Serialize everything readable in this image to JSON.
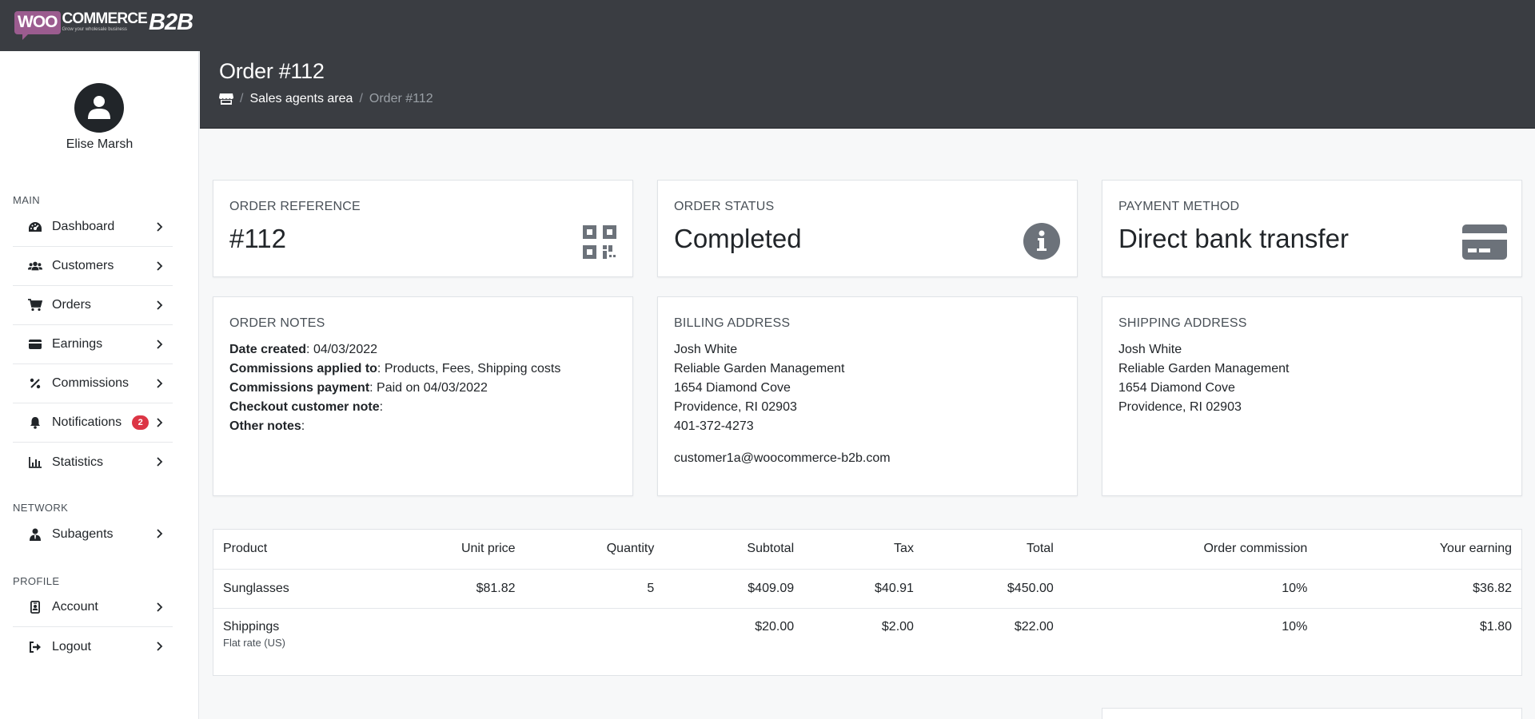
{
  "brand": {
    "woo": "WOO",
    "commerce": "COMMERCE",
    "tagline": "Grow your wholesale business",
    "b2b": "B2B"
  },
  "user": {
    "name": "Elise Marsh"
  },
  "sidebar": {
    "sections": [
      {
        "title": "MAIN",
        "items": [
          {
            "label": "Dashboard",
            "icon": "speedometer-icon"
          },
          {
            "label": "Customers",
            "icon": "users-icon"
          },
          {
            "label": "Orders",
            "icon": "cart-icon"
          },
          {
            "label": "Earnings",
            "icon": "wallet-icon"
          },
          {
            "label": "Commissions",
            "icon": "percent-icon"
          },
          {
            "label": "Notifications",
            "icon": "bell-icon",
            "badge": "2"
          },
          {
            "label": "Statistics",
            "icon": "chart-icon"
          }
        ]
      },
      {
        "title": "NETWORK",
        "items": [
          {
            "label": "Subagents",
            "icon": "user-tie-icon"
          }
        ]
      },
      {
        "title": "PROFILE",
        "items": [
          {
            "label": "Account",
            "icon": "id-badge-icon"
          },
          {
            "label": "Logout",
            "icon": "logout-icon"
          }
        ]
      }
    ]
  },
  "header": {
    "title": "Order #112",
    "breadcrumb": {
      "link": "Sales agents area",
      "current": "Order #112"
    }
  },
  "summary": {
    "reference": {
      "label": "ORDER REFERENCE",
      "value": "#112",
      "icon": "qrcode-icon"
    },
    "status": {
      "label": "ORDER STATUS",
      "value": "Completed",
      "icon": "info-icon"
    },
    "payment": {
      "label": "PAYMENT METHOD",
      "value": "Direct bank transfer",
      "icon": "credit-card-icon"
    }
  },
  "notes": {
    "label": "ORDER NOTES",
    "rows": [
      {
        "key": "Date created",
        "value": ": 04/03/2022"
      },
      {
        "key": "Commissions applied to",
        "value": ": Products, Fees, Shipping costs"
      },
      {
        "key": "Commissions payment",
        "value": ": Paid on 04/03/2022"
      },
      {
        "key": "Checkout customer note",
        "value": ":"
      },
      {
        "key": "Other notes",
        "value": ":"
      }
    ]
  },
  "billing": {
    "label": "BILLING ADDRESS",
    "name": "Josh White",
    "company": "Reliable Garden Management",
    "street": "1654 Diamond Cove",
    "city": "Providence, RI 02903",
    "phone": "401-372-4273",
    "email": "customer1a@woocommerce-b2b.com"
  },
  "shipping": {
    "label": "SHIPPING ADDRESS",
    "name": "Josh White",
    "company": "Reliable Garden Management",
    "street": "1654 Diamond Cove",
    "city": "Providence, RI 02903"
  },
  "table": {
    "headers": [
      "Product",
      "Unit price",
      "Quantity",
      "Subtotal",
      "Tax",
      "Total",
      "Order commission",
      "Your earning"
    ],
    "rows": [
      {
        "product": "Sunglasses",
        "sub": "",
        "unit_price": "$81.82",
        "quantity": "5",
        "subtotal": "$409.09",
        "tax": "$40.91",
        "total": "$450.00",
        "commission": "10%",
        "earning": "$36.82"
      },
      {
        "product": "Shippings",
        "sub": "Flat rate (US)",
        "unit_price": "",
        "quantity": "",
        "subtotal": "$20.00",
        "tax": "$2.00",
        "total": "$22.00",
        "commission": "10%",
        "earning": "$1.80"
      }
    ]
  }
}
